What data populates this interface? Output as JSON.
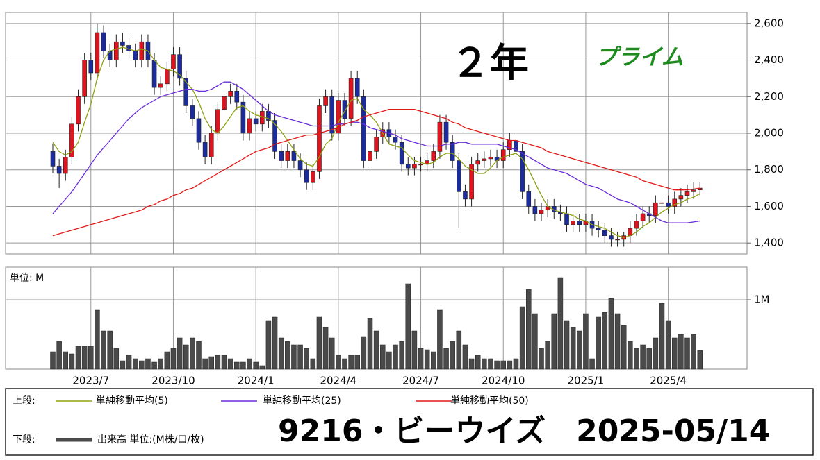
{
  "chart_data": [
    {
      "type": "candlestick",
      "title": "２年",
      "subtitle": "プライム",
      "stock_label": "9216・ビーウイズ　2025-05/14",
      "legend_label": "上段:",
      "up_color": "#e0141e",
      "down_color": "#1c2c9c",
      "open": [
        1900,
        1820,
        1780,
        1870,
        2050,
        2200,
        2400,
        2330,
        2550,
        2450,
        2400,
        2500,
        2480,
        2450,
        2400,
        2500,
        2400,
        2250,
        2270,
        2350,
        2430,
        2300,
        2150,
        2080,
        1950,
        1870,
        2000,
        2130,
        2200,
        2230,
        2170,
        2000,
        2080,
        2050,
        2120,
        2070,
        1900,
        1850,
        1900,
        1850,
        1800,
        1730,
        1790,
        2150,
        2200,
        2000,
        2180,
        2080,
        2300,
        2200,
        1850,
        1900,
        1980,
        2020,
        1980,
        1950,
        1830,
        1810,
        1830,
        1830,
        1850,
        1900,
        2060,
        1950,
        1850,
        1680,
        1640,
        1830,
        1850,
        1860,
        1870,
        1850,
        1910,
        1960,
        1900,
        1680,
        1600,
        1560,
        1580,
        1600,
        1570,
        1560,
        1500,
        1520,
        1500,
        1520,
        1480,
        1470,
        1440,
        1420,
        1420,
        1440,
        1480,
        1520,
        1560,
        1550,
        1620,
        1620,
        1600,
        1640,
        1660,
        1680,
        1690
      ],
      "high": [
        1940,
        1860,
        1910,
        2090,
        2240,
        2440,
        2440,
        2600,
        2590,
        2490,
        2540,
        2550,
        2520,
        2490,
        2540,
        2540,
        2440,
        2310,
        2390,
        2470,
        2470,
        2340,
        2190,
        2120,
        1990,
        2040,
        2170,
        2240,
        2270,
        2270,
        2210,
        2120,
        2120,
        2160,
        2160,
        2110,
        1940,
        1940,
        1940,
        1890,
        1840,
        1830,
        2190,
        2240,
        2240,
        2220,
        2220,
        2340,
        2340,
        2240,
        1940,
        2020,
        2060,
        2060,
        2020,
        1990,
        1870,
        1870,
        1870,
        1890,
        1940,
        2100,
        2100,
        1990,
        1890,
        1720,
        1870,
        1890,
        1900,
        1910,
        1910,
        1950,
        2000,
        2000,
        1940,
        1720,
        1640,
        1620,
        1640,
        1640,
        1610,
        1600,
        1560,
        1560,
        1560,
        1560,
        1520,
        1510,
        1480,
        1460,
        1460,
        1520,
        1560,
        1600,
        1600,
        1660,
        1660,
        1660,
        1680,
        1700,
        1720,
        1730,
        1730
      ],
      "low": [
        1780,
        1700,
        1740,
        1830,
        2010,
        2160,
        2290,
        2290,
        2410,
        2360,
        2360,
        2440,
        2410,
        2360,
        2360,
        2360,
        2210,
        2210,
        2230,
        2310,
        2260,
        2110,
        2040,
        1910,
        1830,
        1830,
        1960,
        2090,
        2160,
        2130,
        1960,
        1960,
        2010,
        2010,
        2030,
        1860,
        1810,
        1810,
        1810,
        1760,
        1690,
        1690,
        1750,
        2110,
        1960,
        1960,
        2040,
        2040,
        2160,
        1810,
        1810,
        1860,
        1940,
        1940,
        1910,
        1790,
        1770,
        1770,
        1790,
        1790,
        1810,
        1860,
        1910,
        1810,
        1480,
        1600,
        1600,
        1790,
        1810,
        1820,
        1810,
        1810,
        1870,
        1860,
        1640,
        1560,
        1520,
        1520,
        1540,
        1530,
        1520,
        1460,
        1460,
        1460,
        1460,
        1440,
        1430,
        1400,
        1380,
        1380,
        1380,
        1400,
        1440,
        1480,
        1510,
        1510,
        1580,
        1560,
        1560,
        1600,
        1620,
        1640,
        1660
      ],
      "close": [
        1820,
        1780,
        1870,
        2050,
        2200,
        2400,
        2330,
        2550,
        2450,
        2400,
        2500,
        2480,
        2450,
        2400,
        2500,
        2400,
        2250,
        2270,
        2350,
        2430,
        2300,
        2150,
        2080,
        1950,
        1870,
        2000,
        2130,
        2200,
        2230,
        2170,
        2000,
        2080,
        2050,
        2120,
        2070,
        1900,
        1850,
        1900,
        1850,
        1800,
        1730,
        1790,
        2150,
        2200,
        2000,
        2180,
        2080,
        2300,
        2200,
        1850,
        1900,
        1980,
        2020,
        1980,
        1950,
        1830,
        1810,
        1830,
        1830,
        1850,
        1900,
        2060,
        1950,
        1850,
        1680,
        1640,
        1830,
        1850,
        1860,
        1870,
        1850,
        1910,
        1960,
        1900,
        1680,
        1600,
        1560,
        1580,
        1600,
        1570,
        1560,
        1500,
        1520,
        1500,
        1520,
        1480,
        1470,
        1440,
        1420,
        1420,
        1440,
        1480,
        1520,
        1560,
        1550,
        1620,
        1620,
        1600,
        1640,
        1660,
        1680,
        1690,
        1700
      ],
      "series": [
        {
          "name": "単純移動平均(5)",
          "color": "#8fa010",
          "values": [
            1950,
            1900,
            1880,
            1900,
            1950,
            2060,
            2160,
            2300,
            2400,
            2450,
            2460,
            2470,
            2460,
            2450,
            2460,
            2450,
            2400,
            2360,
            2350,
            2340,
            2320,
            2280,
            2240,
            2170,
            2080,
            2020,
            2000,
            2040,
            2090,
            2140,
            2150,
            2120,
            2100,
            2090,
            2080,
            2050,
            2010,
            1960,
            1910,
            1860,
            1830,
            1820,
            1870,
            1940,
            1970,
            2060,
            2120,
            2180,
            2190,
            2130,
            2100,
            2060,
            2000,
            1940,
            1930,
            1920,
            1880,
            1850,
            1840,
            1830,
            1840,
            1870,
            1890,
            1890,
            1860,
            1820,
            1800,
            1780,
            1780,
            1810,
            1850,
            1870,
            1880,
            1890,
            1860,
            1800,
            1730,
            1660,
            1600,
            1580,
            1570,
            1560,
            1550,
            1530,
            1520,
            1500,
            1490,
            1480,
            1460,
            1440,
            1430,
            1440,
            1460,
            1490,
            1510,
            1540,
            1570,
            1590,
            1610,
            1620,
            1640,
            1650,
            1670
          ]
        },
        {
          "name": "単純移動平均(25)",
          "color": "#6a2cd8",
          "values": [
            1560,
            1600,
            1640,
            1680,
            1730,
            1780,
            1830,
            1880,
            1920,
            1960,
            2000,
            2040,
            2080,
            2110,
            2140,
            2160,
            2180,
            2200,
            2210,
            2220,
            2230,
            2240,
            2240,
            2230,
            2230,
            2240,
            2260,
            2280,
            2280,
            2260,
            2240,
            2210,
            2180,
            2150,
            2120,
            2100,
            2090,
            2080,
            2070,
            2060,
            2050,
            2040,
            2040,
            2040,
            2040,
            2050,
            2050,
            2060,
            2060,
            2050,
            2030,
            2020,
            2010,
            2000,
            1990,
            1970,
            1960,
            1950,
            1940,
            1930,
            1930,
            1930,
            1940,
            1940,
            1950,
            1950,
            1940,
            1940,
            1940,
            1940,
            1940,
            1930,
            1920,
            1910,
            1890,
            1870,
            1850,
            1830,
            1810,
            1800,
            1790,
            1780,
            1760,
            1740,
            1720,
            1710,
            1700,
            1680,
            1660,
            1640,
            1630,
            1620,
            1600,
            1580,
            1560,
            1540,
            1520,
            1510,
            1510,
            1510,
            1510,
            1515,
            1520
          ]
        },
        {
          "name": "単純移動平均(50)",
          "color": "#e01818",
          "values": [
            1440,
            1450,
            1460,
            1470,
            1480,
            1490,
            1500,
            1510,
            1520,
            1530,
            1540,
            1550,
            1560,
            1570,
            1580,
            1600,
            1610,
            1630,
            1640,
            1660,
            1670,
            1690,
            1700,
            1720,
            1740,
            1760,
            1780,
            1800,
            1820,
            1840,
            1860,
            1880,
            1900,
            1910,
            1920,
            1940,
            1950,
            1960,
            1970,
            1980,
            1990,
            1990,
            2000,
            2010,
            2020,
            2030,
            2050,
            2060,
            2070,
            2090,
            2100,
            2110,
            2120,
            2130,
            2130,
            2130,
            2130,
            2130,
            2120,
            2110,
            2100,
            2090,
            2080,
            2060,
            2050,
            2030,
            2020,
            2010,
            2000,
            1990,
            1980,
            1970,
            1960,
            1960,
            1950,
            1940,
            1930,
            1920,
            1900,
            1890,
            1880,
            1870,
            1860,
            1850,
            1840,
            1830,
            1820,
            1810,
            1800,
            1790,
            1780,
            1770,
            1760,
            1740,
            1730,
            1720,
            1710,
            1700,
            1690,
            1690,
            1690,
            1695,
            1700
          ]
        }
      ],
      "ylim": [
        1340,
        2660
      ],
      "yticks": [
        {
          "value": 1400,
          "label": "1,400"
        },
        {
          "value": 1600,
          "label": "1,600"
        },
        {
          "value": 1800,
          "label": "1,800"
        },
        {
          "value": 2000,
          "label": "2,000"
        },
        {
          "value": 2200,
          "label": "2,200"
        },
        {
          "value": 2400,
          "label": "2,400"
        },
        {
          "value": 2600,
          "label": "2,600"
        }
      ],
      "grid": true
    },
    {
      "type": "bar",
      "unit_label": "単位: M",
      "name": "出来高 単位:(M株/口/枚)",
      "legend_label": "下段:",
      "color": "#4a4a4a",
      "categories": [
        null,
        null,
        null,
        null,
        null,
        null,
        "2023/7",
        null,
        null,
        null,
        null,
        null,
        null,
        null,
        null,
        null,
        null,
        null,
        null,
        "2023/10",
        null,
        null,
        null,
        null,
        null,
        null,
        null,
        null,
        null,
        null,
        null,
        null,
        "2024/1",
        null,
        null,
        null,
        null,
        null,
        null,
        null,
        null,
        null,
        null,
        null,
        null,
        "2024/4",
        null,
        null,
        null,
        null,
        null,
        null,
        null,
        null,
        null,
        null,
        null,
        null,
        "2024/7",
        null,
        null,
        null,
        null,
        null,
        null,
        null,
        null,
        null,
        null,
        null,
        null,
        "2024/10",
        null,
        null,
        null,
        null,
        null,
        null,
        null,
        null,
        null,
        null,
        null,
        null,
        "2025/1",
        null,
        null,
        null,
        null,
        null,
        null,
        null,
        null,
        null,
        null,
        null,
        null,
        "2025/4",
        null,
        null,
        null,
        null,
        null
      ],
      "values": [
        0.25,
        0.4,
        0.25,
        0.22,
        0.33,
        0.33,
        0.33,
        0.85,
        0.55,
        0.55,
        0.3,
        0.12,
        0.2,
        0.15,
        0.12,
        0.15,
        0.1,
        0.15,
        0.25,
        0.3,
        0.45,
        0.35,
        0.45,
        0.4,
        0.15,
        0.18,
        0.2,
        0.2,
        0.15,
        0.1,
        0.1,
        0.15,
        0.1,
        0.05,
        0.7,
        0.75,
        0.45,
        0.4,
        0.35,
        0.35,
        0.3,
        0.15,
        0.75,
        0.6,
        0.45,
        0.2,
        0.15,
        0.2,
        0.2,
        0.47,
        0.73,
        0.55,
        0.35,
        0.25,
        0.35,
        0.4,
        1.23,
        0.55,
        0.3,
        0.28,
        0.25,
        0.85,
        0.3,
        0.4,
        0.55,
        0.35,
        0.15,
        0.2,
        0.15,
        0.15,
        0.12,
        0.12,
        0.12,
        0.15,
        0.9,
        1.15,
        0.8,
        0.3,
        0.4,
        0.8,
        1.32,
        0.7,
        0.6,
        0.55,
        0.8,
        0.15,
        0.75,
        0.82,
        1.02,
        0.8,
        0.63,
        0.4,
        0.3,
        0.35,
        0.3,
        0.45,
        0.95,
        0.7,
        0.45,
        0.5,
        0.45,
        0.5,
        0.27
      ],
      "ylim": [
        0,
        1.47
      ],
      "yticks": [
        {
          "value": 1,
          "label": "1M"
        }
      ],
      "grid": true
    }
  ]
}
